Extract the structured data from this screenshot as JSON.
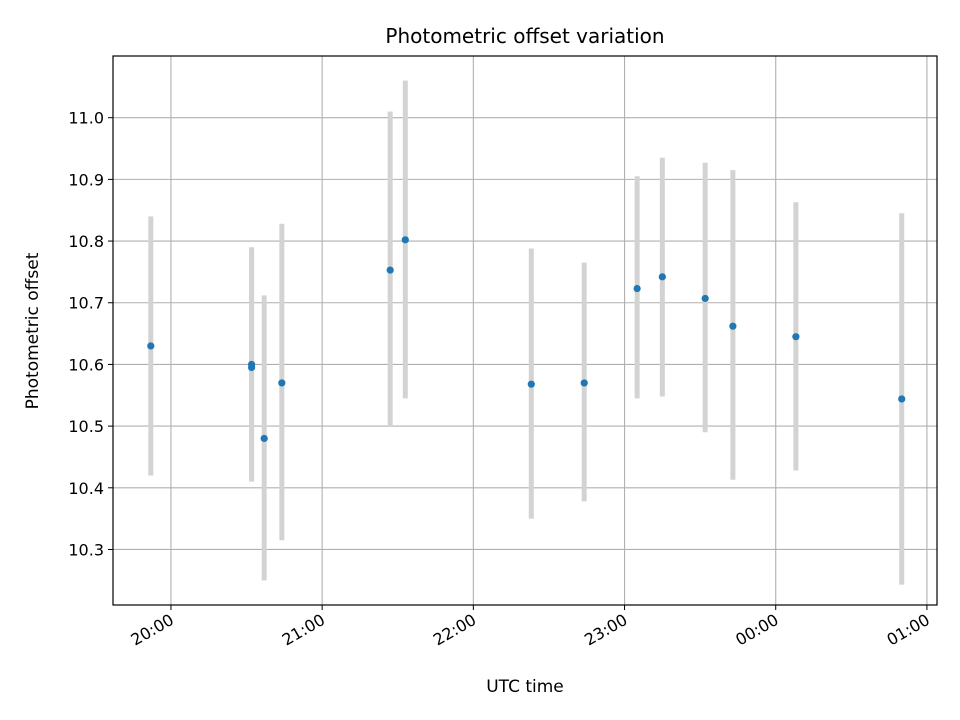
{
  "chart_data": {
    "type": "scatter",
    "title": "Photometric offset variation",
    "xlabel": "UTC time",
    "ylabel": "Photometric offset",
    "grid": true,
    "legend": "none",
    "marker_color": "#1f77b4",
    "errorbar_color": "#d3d3d3",
    "x_tick_labels": [
      "20:00",
      "21:00",
      "22:00",
      "23:00",
      "00:00",
      "01:00"
    ],
    "y_tick_labels": [
      "10.3",
      "10.4",
      "10.5",
      "10.6",
      "10.7",
      "10.8",
      "10.9",
      "11.0"
    ],
    "x_ticks": [
      "20:00",
      "21:00",
      "22:00",
      "23:00",
      "24:00",
      "25:00"
    ],
    "y_ticks": [
      10.3,
      10.4,
      10.5,
      10.6,
      10.7,
      10.8,
      10.9,
      11.0
    ],
    "xlim": [
      "19:37",
      "25:04"
    ],
    "ylim": [
      10.21,
      11.1
    ],
    "series": [
      {
        "x": [
          "19:52",
          "20:32",
          "20:32",
          "20:37",
          "20:44",
          "21:27",
          "21:33",
          "22:23",
          "22:44",
          "23:05",
          "23:15",
          "23:32",
          "23:43",
          "24:08",
          "24:50"
        ],
        "y": [
          10.63,
          10.6,
          10.595,
          10.48,
          10.57,
          10.753,
          10.802,
          10.568,
          10.57,
          10.723,
          10.742,
          10.707,
          10.662,
          10.645,
          10.544
        ],
        "yerr_low": [
          10.42,
          10.41,
          10.42,
          10.25,
          10.315,
          10.5,
          10.545,
          10.35,
          10.378,
          10.545,
          10.548,
          10.49,
          10.413,
          10.428,
          10.243
        ],
        "yerr_high": [
          10.84,
          10.79,
          10.78,
          10.712,
          10.828,
          11.01,
          11.06,
          10.788,
          10.765,
          10.905,
          10.935,
          10.927,
          10.915,
          10.863,
          10.845
        ]
      }
    ]
  }
}
